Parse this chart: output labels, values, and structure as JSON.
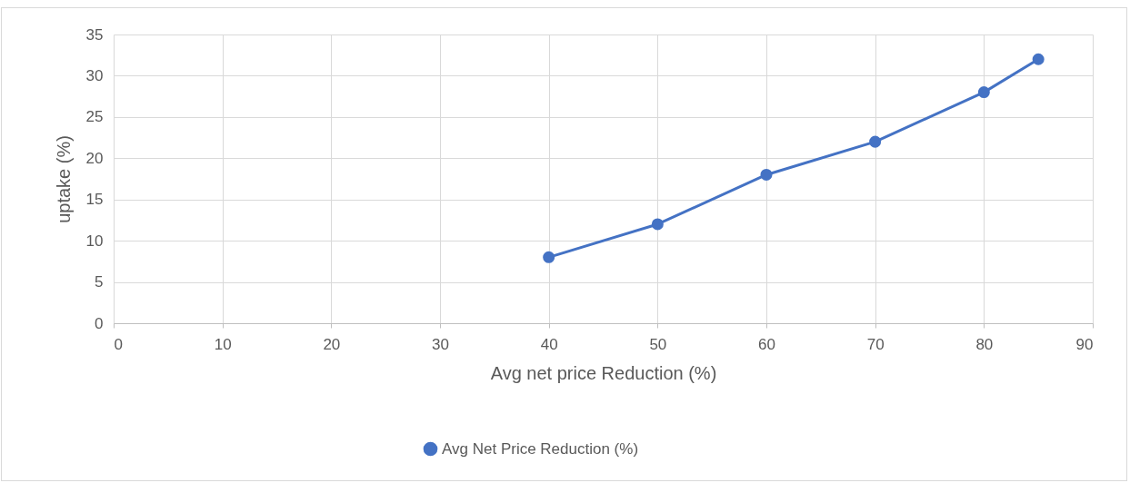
{
  "chart_data": {
    "type": "line",
    "xlabel": "Avg net price Reduction (%)",
    "ylabel": "uptake (%)",
    "x": [
      40,
      50,
      60,
      70,
      80,
      85
    ],
    "series": [
      {
        "name": "Avg Net Price Reduction (%)",
        "color": "#4472c4",
        "values": [
          8,
          12,
          18,
          22,
          28,
          32
        ]
      }
    ],
    "xlim": [
      0,
      90
    ],
    "ylim": [
      0,
      35
    ],
    "xticks": [
      0,
      10,
      20,
      30,
      40,
      50,
      60,
      70,
      80,
      90
    ],
    "yticks": [
      0,
      5,
      10,
      15,
      20,
      25,
      30,
      35
    ],
    "grid": true,
    "legend": "bottom",
    "marker": "circle"
  }
}
